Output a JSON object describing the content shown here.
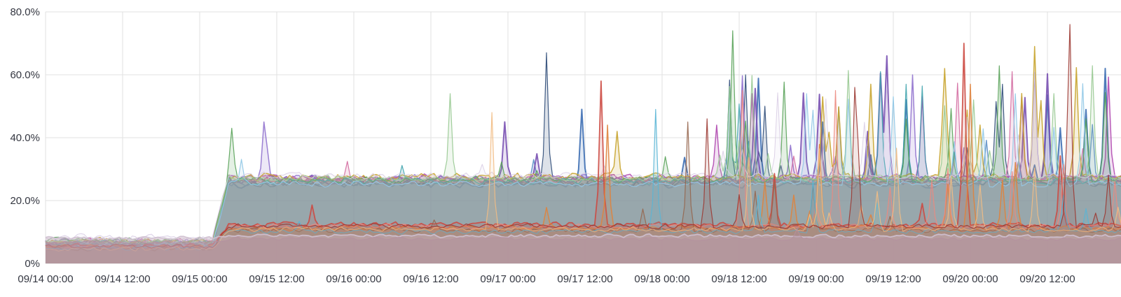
{
  "chart": {
    "background": "#ffffff",
    "grid_color": "#e2e2e2",
    "text_color": "#343741"
  },
  "chart_data": {
    "type": "area",
    "title": "",
    "xlabel": "",
    "ylabel": "",
    "unit": "percent",
    "ylim": [
      0,
      80
    ],
    "grid": true,
    "legend_position": "none",
    "y_axis_ticks": [
      {
        "value": 80,
        "label": "80.0%"
      },
      {
        "value": 60,
        "label": "60.0%"
      },
      {
        "value": 40,
        "label": "40.0%"
      },
      {
        "value": 20,
        "label": "20.0%"
      },
      {
        "value": 0,
        "label": "0%"
      }
    ],
    "x_axis_ticks": [
      {
        "hour": 0,
        "label": "09/14 00:00"
      },
      {
        "hour": 12,
        "label": "09/14 12:00"
      },
      {
        "hour": 24,
        "label": "09/15 00:00"
      },
      {
        "hour": 36,
        "label": "09/15 12:00"
      },
      {
        "hour": 48,
        "label": "09/16 00:00"
      },
      {
        "hour": 60,
        "label": "09/16 12:00"
      },
      {
        "hour": 72,
        "label": "09/17 00:00"
      },
      {
        "hour": 84,
        "label": "09/17 12:00"
      },
      {
        "hour": 96,
        "label": "09/18 00:00"
      },
      {
        "hour": 108,
        "label": "09/18 12:00"
      },
      {
        "hour": 120,
        "label": "09/19 00:00"
      },
      {
        "hour": 132,
        "label": "09/19 12:00"
      },
      {
        "hour": 144,
        "label": "09/20 00:00"
      },
      {
        "hour": 156,
        "label": "09/20 12:00"
      }
    ],
    "time_range_hours": 167.5,
    "step_hours": 0.5,
    "seed": 42,
    "level_shift": {
      "start_hour": 26,
      "end_hour": 28.5,
      "description": "all series step up from ~4-8% to clustered levels at ~26% (top band) and ~11% (mid band)"
    },
    "dense_spikes_start_hour": 106.5,
    "spike_behavior": {
      "top": {
        "sparse_prob": 0.012,
        "sparse_amp": [
          3,
          9
        ],
        "dense_prob": 0.06,
        "dense_amp": [
          5,
          36
        ]
      },
      "mid": {
        "sparse_prob": 0.01,
        "sparse_amp": [
          2,
          7
        ],
        "dense_prob": 0.05,
        "dense_amp": [
          4,
          27
        ]
      },
      "low": {
        "sparse_prob": 0.0,
        "sparse_amp": [
          0,
          0
        ],
        "dense_prob": 0.008,
        "dense_amp": [
          2,
          6
        ]
      }
    },
    "series": [
      {
        "name": "blue",
        "color": "#3e6fb4",
        "band": "top",
        "base_low": 6.0,
        "base_high": 25.3,
        "jitter": 1.5,
        "width": 2.0,
        "fill_opacity": 0.16
      },
      {
        "name": "steel",
        "color": "#6092c8",
        "band": "top",
        "base_low": 5.5,
        "base_high": 25.9,
        "jitter": 1.4,
        "width": 1.5,
        "fill_opacity": 0.16
      },
      {
        "name": "navy",
        "color": "#2c4a77",
        "band": "top",
        "base_low": 6.2,
        "base_high": 25.6,
        "jitter": 1.3,
        "width": 1.2,
        "fill_opacity": 0.16
      },
      {
        "name": "purple",
        "color": "#7a52b3",
        "band": "top",
        "base_low": 6.5,
        "base_high": 26.6,
        "jitter": 1.5,
        "width": 2.0,
        "fill_opacity": 0.16
      },
      {
        "name": "violet",
        "color": "#9173ce",
        "band": "top",
        "base_low": 7.0,
        "base_high": 27.0,
        "jitter": 1.4,
        "width": 1.5,
        "fill_opacity": 0.16
      },
      {
        "name": "magenta",
        "color": "#b14bb1",
        "band": "top",
        "base_low": 5.8,
        "base_high": 27.2,
        "jitter": 1.4,
        "width": 1.5,
        "fill_opacity": 0.16
      },
      {
        "name": "pink",
        "color": "#d2689e",
        "band": "top",
        "base_low": 6.8,
        "base_high": 26.3,
        "jitter": 1.3,
        "width": 1.2,
        "fill_opacity": 0.16
      },
      {
        "name": "gold",
        "color": "#c8a42e",
        "band": "top",
        "base_low": 7.2,
        "base_high": 27.5,
        "jitter": 1.4,
        "width": 1.5,
        "fill_opacity": 0.16
      },
      {
        "name": "teal",
        "color": "#3fa3ad",
        "band": "top",
        "base_low": 6.3,
        "base_high": 26.2,
        "jitter": 1.3,
        "width": 1.2,
        "fill_opacity": 0.16
      },
      {
        "name": "green",
        "color": "#56a156",
        "band": "top",
        "base_low": 7.4,
        "base_high": 26.8,
        "jitter": 1.3,
        "width": 1.2,
        "fill_opacity": 0.16
      },
      {
        "name": "lightgreen",
        "color": "#96c890",
        "band": "top",
        "base_low": 6.9,
        "base_high": 27.1,
        "jitter": 1.2,
        "width": 1.2,
        "fill_opacity": 0.14
      },
      {
        "name": "sky",
        "color": "#8ec6e6",
        "band": "top",
        "base_low": 6.1,
        "base_high": 25.4,
        "jitter": 1.2,
        "width": 1.2,
        "fill_opacity": 0.14
      },
      {
        "name": "lightlav",
        "color": "#d9cde4",
        "band": "top",
        "base_low": 8.4,
        "base_high": 28.0,
        "jitter": 1.2,
        "width": 1.0,
        "fill_opacity": 0.12
      },
      {
        "name": "red",
        "color": "#cc4a43",
        "band": "mid",
        "base_low": 5.6,
        "base_high": 12.3,
        "jitter": 1.0,
        "width": 1.8,
        "fill_opacity": 0.15
      },
      {
        "name": "orange",
        "color": "#df833d",
        "band": "mid",
        "base_low": 5.2,
        "base_high": 11.3,
        "jitter": 1.0,
        "width": 1.5,
        "fill_opacity": 0.15
      },
      {
        "name": "salmon",
        "color": "#ec8a80",
        "band": "mid",
        "base_low": 4.9,
        "base_high": 11.8,
        "jitter": 0.9,
        "width": 1.2,
        "fill_opacity": 0.14
      },
      {
        "name": "brown",
        "color": "#96664e",
        "band": "mid",
        "base_low": 4.7,
        "base_high": 10.6,
        "jitter": 0.9,
        "width": 1.2,
        "fill_opacity": 0.13
      },
      {
        "name": "cyan",
        "color": "#5ab5d5",
        "band": "mid",
        "base_low": 5.0,
        "base_high": 10.2,
        "jitter": 0.9,
        "width": 1.2,
        "fill_opacity": 0.14
      },
      {
        "name": "peach",
        "color": "#f2bc84",
        "band": "mid",
        "base_low": 4.6,
        "base_high": 10.9,
        "jitter": 0.9,
        "width": 1.2,
        "fill_opacity": 0.14
      },
      {
        "name": "darkred",
        "color": "#9c3a33",
        "band": "mid",
        "base_low": 5.3,
        "base_high": 11.9,
        "jitter": 0.9,
        "width": 1.2,
        "fill_opacity": 0.13
      },
      {
        "name": "lavender",
        "color": "#cfc0d0",
        "band": "low",
        "base_low": 8.0,
        "base_high": 8.8,
        "jitter": 0.7,
        "width": 1.8,
        "fill_opacity": 0.45,
        "fill_color": "#c9b4c4"
      },
      {
        "name": "mauve",
        "color": "#b490a0",
        "band": "low",
        "base_low": 6.8,
        "base_high": 7.8,
        "jitter": 0.6,
        "width": 1.0,
        "fill_opacity": 0.4,
        "fill_color": "#b08c9c"
      }
    ],
    "notable_spikes": [
      {
        "hour": 29,
        "value": 43,
        "series": "green"
      },
      {
        "hour": 34,
        "value": 45,
        "series": "violet"
      },
      {
        "hour": 63,
        "value": 54,
        "series": "lightgreen"
      },
      {
        "hour": 69.5,
        "value": 48,
        "series": "peach"
      },
      {
        "hour": 71.5,
        "value": 45,
        "series": "purple"
      },
      {
        "hour": 78,
        "value": 67,
        "series": "navy"
      },
      {
        "hour": 83.5,
        "value": 49,
        "series": "blue"
      },
      {
        "hour": 86.5,
        "value": 58,
        "series": "red"
      },
      {
        "hour": 87.5,
        "value": 44,
        "series": "orange"
      },
      {
        "hour": 89,
        "value": 42,
        "series": "gold"
      },
      {
        "hour": 95,
        "value": 49,
        "series": "cyan"
      },
      {
        "hour": 100,
        "value": 45,
        "series": "brown"
      },
      {
        "hour": 103,
        "value": 46,
        "series": "darkred"
      },
      {
        "hour": 104.5,
        "value": 44,
        "series": "magenta"
      },
      {
        "hour": 107,
        "value": 74,
        "series": "green"
      },
      {
        "hour": 108.5,
        "value": 55,
        "series": "salmon"
      },
      {
        "hour": 110,
        "value": 54,
        "series": "magenta"
      },
      {
        "hour": 112,
        "value": 50,
        "series": "navy"
      },
      {
        "hour": 118.5,
        "value": 54,
        "series": "sky"
      },
      {
        "hour": 121,
        "value": 53,
        "series": "gold"
      },
      {
        "hour": 123,
        "value": 55,
        "series": "salmon"
      },
      {
        "hour": 126,
        "value": 56,
        "series": "darkred"
      },
      {
        "hour": 128.5,
        "value": 57,
        "series": "gold"
      },
      {
        "hour": 131,
        "value": 66,
        "series": "purple"
      },
      {
        "hour": 134,
        "value": 57,
        "series": "teal"
      },
      {
        "hour": 136.5,
        "value": 53,
        "series": "magenta"
      },
      {
        "hour": 140,
        "value": 62,
        "series": "gold"
      },
      {
        "hour": 143,
        "value": 70,
        "series": "red"
      },
      {
        "hour": 144,
        "value": 57,
        "series": "orange"
      },
      {
        "hour": 149,
        "value": 57,
        "series": "navy"
      },
      {
        "hour": 152,
        "value": 53,
        "series": "magenta"
      },
      {
        "hour": 154,
        "value": 69,
        "series": "gold"
      },
      {
        "hour": 159.5,
        "value": 76,
        "series": "darkred"
      },
      {
        "hour": 162,
        "value": 46,
        "series": "green"
      },
      {
        "hour": 165,
        "value": 62,
        "series": "blue"
      }
    ]
  }
}
